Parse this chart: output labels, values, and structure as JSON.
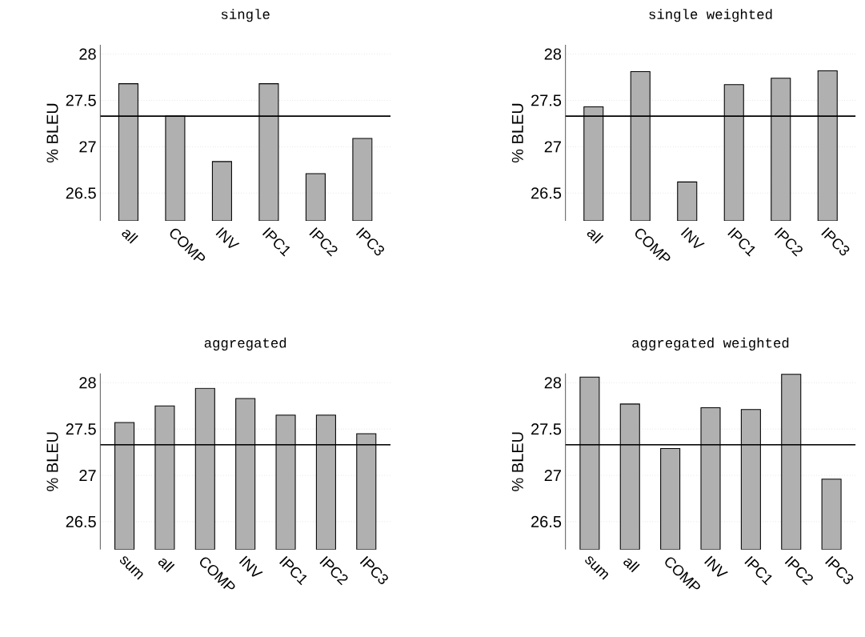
{
  "chart_data": [
    {
      "type": "bar",
      "title": "single",
      "ylabel": "% BLEU",
      "categories": [
        "all",
        "COMP",
        "INV",
        "IPC1",
        "IPC2",
        "IPC3"
      ],
      "values": [
        27.68,
        27.33,
        26.84,
        27.68,
        26.71,
        27.09
      ],
      "color": "#b0b0b0",
      "ylim": [
        26.2,
        28.1
      ],
      "yticks": [
        26.5,
        27,
        27.5,
        28
      ],
      "grid": "y",
      "ref_lines": [
        {
          "axis": "y",
          "value": 27.33,
          "color": "#000000"
        }
      ]
    },
    {
      "type": "bar",
      "title": "single weighted",
      "ylabel": "% BLEU",
      "categories": [
        "all",
        "COMP",
        "INV",
        "IPC1",
        "IPC2",
        "IPC3"
      ],
      "values": [
        27.43,
        27.81,
        26.62,
        27.67,
        27.74,
        27.82
      ],
      "color": "#b0b0b0",
      "ylim": [
        26.2,
        28.1
      ],
      "yticks": [
        26.5,
        27,
        27.5,
        28
      ],
      "grid": "y",
      "ref_lines": [
        {
          "axis": "y",
          "value": 27.33,
          "color": "#000000"
        }
      ]
    },
    {
      "type": "bar",
      "title": "aggregated",
      "ylabel": "% BLEU",
      "categories": [
        "sum",
        "all",
        "COMP",
        "INV",
        "IPC1",
        "IPC2",
        "IPC3"
      ],
      "values": [
        27.57,
        27.75,
        27.94,
        27.83,
        27.65,
        27.65,
        27.45
      ],
      "color": "#b0b0b0",
      "ylim": [
        26.2,
        28.1
      ],
      "yticks": [
        26.5,
        27,
        27.5,
        28
      ],
      "grid": "y",
      "ref_lines": [
        {
          "axis": "y",
          "value": 27.33,
          "color": "#000000"
        }
      ]
    },
    {
      "type": "bar",
      "title": "aggregated weighted",
      "ylabel": "% BLEU",
      "categories": [
        "sum",
        "all",
        "COMP",
        "INV",
        "IPC1",
        "IPC2",
        "IPC3"
      ],
      "values": [
        28.06,
        27.77,
        27.29,
        27.73,
        27.71,
        28.09,
        26.96
      ],
      "color": "#b0b0b0",
      "ylim": [
        26.2,
        28.1
      ],
      "yticks": [
        26.5,
        27,
        27.5,
        28
      ],
      "grid": "y",
      "ref_lines": [
        {
          "axis": "y",
          "value": 27.33,
          "color": "#000000"
        }
      ]
    }
  ]
}
